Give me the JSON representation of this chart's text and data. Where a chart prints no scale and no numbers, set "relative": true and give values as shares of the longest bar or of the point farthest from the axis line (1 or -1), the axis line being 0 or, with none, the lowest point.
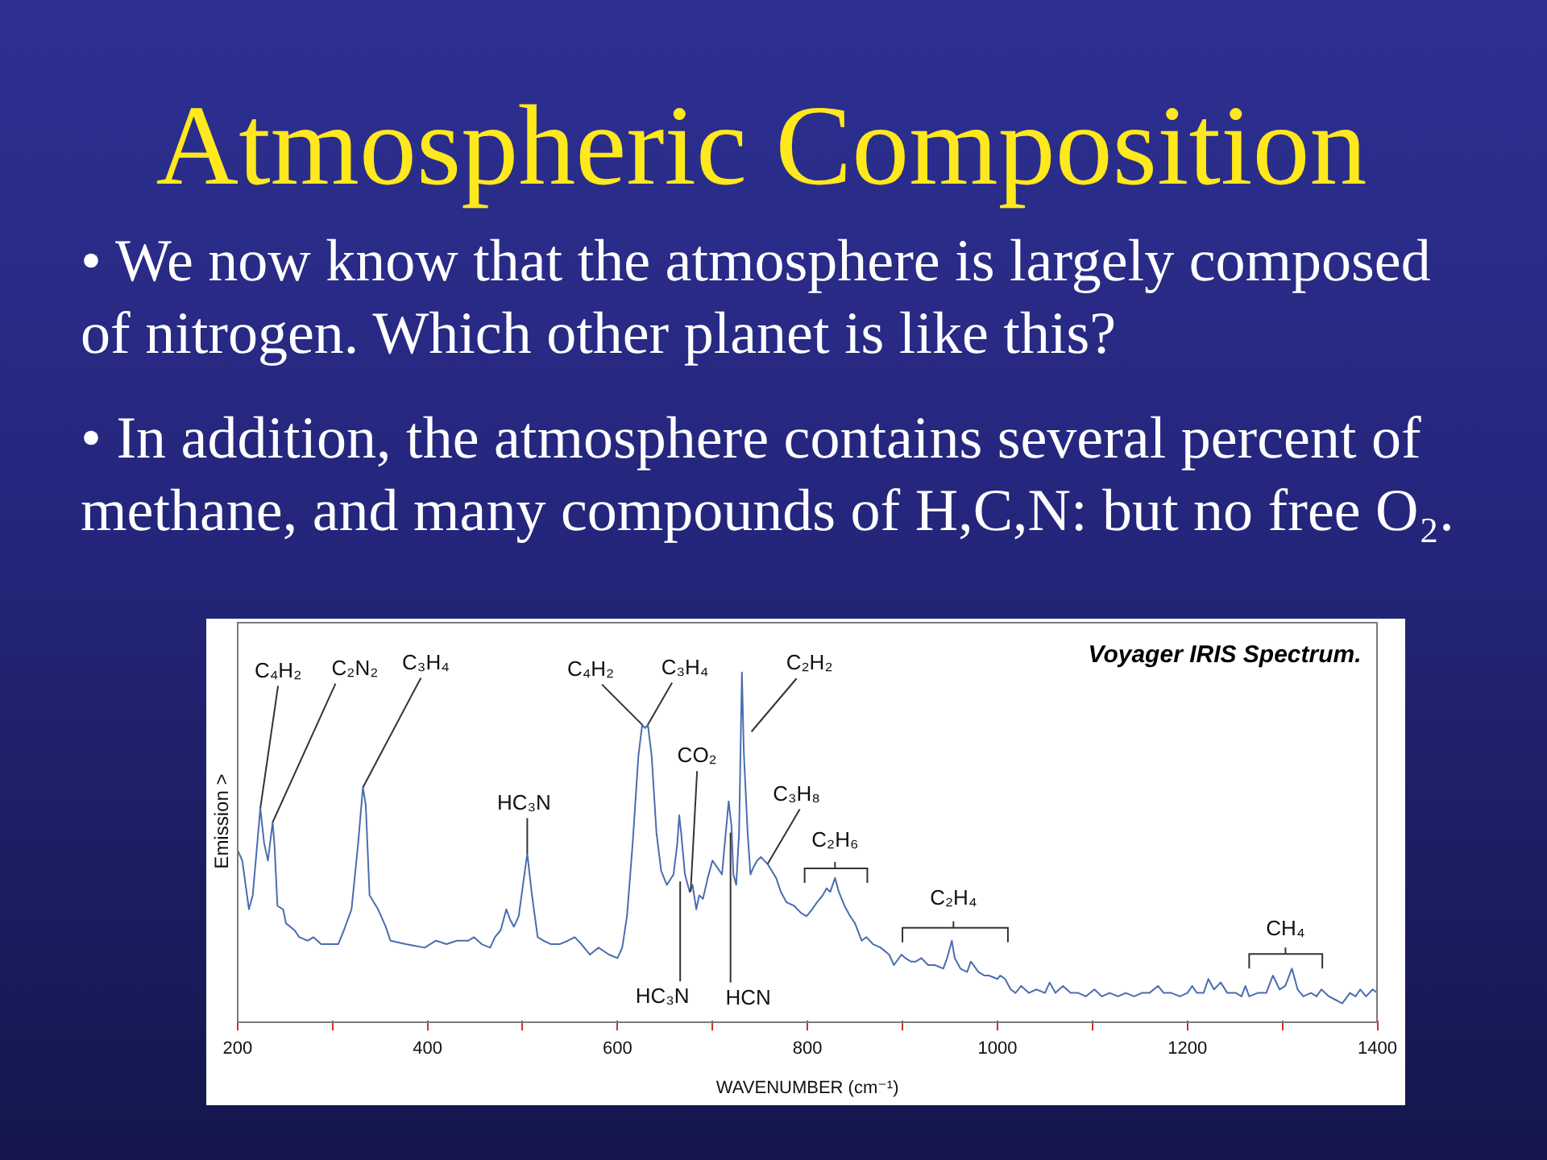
{
  "chart_data": {
    "type": "line",
    "title": "Atmospheric Composition",
    "subtitle": "Voyager IRIS Spectrum.",
    "xlabel": "WAVENUMBER (cm⁻¹)",
    "ylabel": "Emission >",
    "annotations": [
      "• We now know that the atmosphere is largely composed of nitrogen. Which other planet is like this?",
      "• In addition, the atmosphere contains several percent of methane, and many compounds of H,C,N: but no free O₂.",
      {
        "text": "C₄H₂",
        "x": 224,
        "y": 0.61
      },
      {
        "text": "C₂N₂",
        "x": 237,
        "y": 0.57
      },
      {
        "text": "C₃H₄",
        "x": 332,
        "y": 0.67
      },
      {
        "text": "HC₃N",
        "x": 505,
        "y": 0.48
      },
      {
        "text": "C₄H₂",
        "x": 626,
        "y": 0.85
      },
      {
        "text": "C₃H₄",
        "x": 632,
        "y": 0.85
      },
      {
        "text": "C₂H₂",
        "x": 741,
        "y": 0.83
      },
      {
        "text": "CO₂",
        "x": 677,
        "y": 0.37
      },
      {
        "text": "C₃H₈",
        "x": 758,
        "y": 0.45
      },
      {
        "text": "C₂H₆",
        "x": 829,
        "y": 0.41
      },
      {
        "text": "C₂H₄",
        "x": 952,
        "y": 0.23
      },
      {
        "text": "CH₄",
        "x": 1310,
        "y": 0.15
      },
      {
        "text": "HC₃N",
        "x": 666,
        "y": 0.4
      },
      {
        "text": "HCN",
        "x": 719,
        "y": 0.54
      }
    ],
    "relative": true,
    "color": "#4a6db0",
    "x": [
      200,
      205,
      212,
      216,
      224,
      228,
      232,
      237,
      239,
      242,
      248,
      251,
      260,
      265,
      274,
      280,
      288,
      297,
      306,
      312,
      320,
      327,
      332,
      335,
      339,
      348,
      356,
      361,
      377,
      397,
      409,
      420,
      431,
      443,
      449,
      457,
      466,
      471,
      477,
      483,
      487,
      491,
      496,
      505,
      510,
      516,
      522,
      530,
      539,
      548,
      555,
      562,
      571,
      580,
      591,
      600,
      605,
      610,
      616,
      622,
      626,
      629,
      632,
      636,
      641,
      646,
      652,
      659,
      663,
      665,
      667,
      671,
      676,
      679,
      683,
      686,
      690,
      695,
      700,
      705,
      710,
      714,
      717,
      720,
      722,
      725,
      728,
      731,
      733,
      737,
      740,
      743,
      747,
      751,
      758,
      767,
      772,
      778,
      786,
      793,
      799,
      805,
      810,
      816,
      820,
      824,
      829,
      833,
      839,
      845,
      850,
      857,
      862,
      869,
      877,
      886,
      891,
      899,
      903,
      909,
      914,
      920,
      927,
      934,
      943,
      947,
      952,
      955,
      961,
      968,
      972,
      980,
      986,
      991,
      1000,
      1003,
      1008,
      1014,
      1019,
      1025,
      1033,
      1041,
      1050,
      1055,
      1061,
      1069,
      1077,
      1085,
      1093,
      1102,
      1110,
      1118,
      1127,
      1135,
      1144,
      1152,
      1160,
      1169,
      1175,
      1183,
      1192,
      1200,
      1205,
      1210,
      1217,
      1222,
      1228,
      1235,
      1242,
      1251,
      1257,
      1261,
      1265,
      1274,
      1283,
      1290,
      1297,
      1303,
      1310,
      1316,
      1322,
      1330,
      1336,
      1341,
      1349,
      1356,
      1363,
      1371,
      1377,
      1382,
      1388,
      1395,
      1400
    ],
    "values": [
      0.49,
      0.46,
      0.32,
      0.36,
      0.61,
      0.51,
      0.46,
      0.57,
      0.5,
      0.33,
      0.32,
      0.28,
      0.26,
      0.24,
      0.23,
      0.24,
      0.22,
      0.22,
      0.22,
      0.26,
      0.32,
      0.51,
      0.67,
      0.62,
      0.36,
      0.32,
      0.27,
      0.23,
      0.22,
      0.21,
      0.23,
      0.22,
      0.23,
      0.23,
      0.24,
      0.22,
      0.21,
      0.24,
      0.26,
      0.32,
      0.29,
      0.27,
      0.3,
      0.48,
      0.36,
      0.24,
      0.23,
      0.22,
      0.22,
      0.23,
      0.24,
      0.22,
      0.19,
      0.21,
      0.19,
      0.18,
      0.21,
      0.3,
      0.51,
      0.76,
      0.85,
      0.84,
      0.85,
      0.76,
      0.54,
      0.43,
      0.39,
      0.42,
      0.51,
      0.59,
      0.54,
      0.42,
      0.37,
      0.39,
      0.32,
      0.36,
      0.35,
      0.41,
      0.46,
      0.44,
      0.42,
      0.54,
      0.63,
      0.56,
      0.42,
      0.39,
      0.54,
      1,
      0.77,
      0.54,
      0.42,
      0.44,
      0.46,
      0.47,
      0.45,
      0.41,
      0.37,
      0.34,
      0.33,
      0.31,
      0.3,
      0.32,
      0.34,
      0.36,
      0.38,
      0.37,
      0.41,
      0.37,
      0.33,
      0.3,
      0.28,
      0.23,
      0.24,
      0.22,
      0.21,
      0.19,
      0.16,
      0.19,
      0.18,
      0.17,
      0.17,
      0.18,
      0.16,
      0.16,
      0.15,
      0.18,
      0.23,
      0.18,
      0.15,
      0.14,
      0.17,
      0.14,
      0.13,
      0.13,
      0.12,
      0.13,
      0.12,
      0.09,
      0.08,
      0.1,
      0.08,
      0.09,
      0.08,
      0.11,
      0.08,
      0.1,
      0.08,
      0.08,
      0.07,
      0.09,
      0.07,
      0.08,
      0.07,
      0.08,
      0.07,
      0.08,
      0.08,
      0.1,
      0.08,
      0.08,
      0.07,
      0.08,
      0.1,
      0.08,
      0.08,
      0.12,
      0.09,
      0.11,
      0.08,
      0.08,
      0.07,
      0.1,
      0.07,
      0.08,
      0.08,
      0.13,
      0.09,
      0.1,
      0.15,
      0.09,
      0.07,
      0.08,
      0.07,
      0.09,
      0.07,
      0.06,
      0.05,
      0.08,
      0.07,
      0.09,
      0.07,
      0.09,
      0.08
    ],
    "xlim": [
      200,
      1400
    ],
    "xticks": [
      200,
      {
        "value": 300,
        "label": null
      },
      400,
      {
        "value": 500,
        "label": null
      },
      600,
      {
        "value": 700,
        "label": null
      },
      800,
      {
        "value": 900,
        "label": null
      },
      1000,
      {
        "value": 1100,
        "label": null
      },
      1200,
      {
        "value": 1300,
        "label": null
      },
      1400
    ],
    "grid": false,
    "legend": false,
    "marker": "none",
    "line_style": "solid",
    "tick_labels": "x"
  }
}
